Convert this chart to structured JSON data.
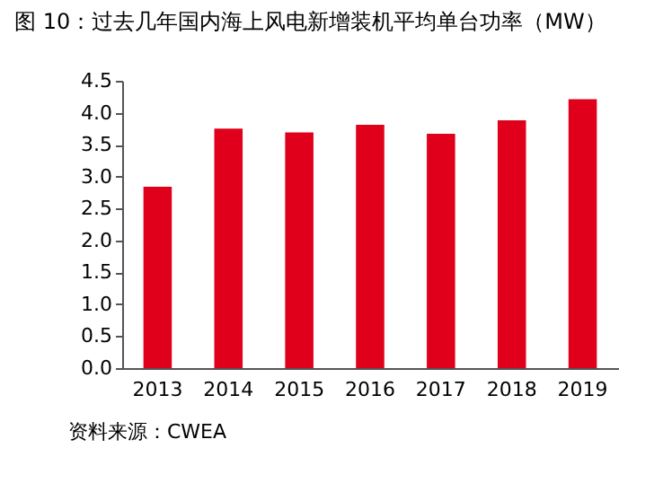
{
  "chart_data": {
    "type": "bar",
    "title": "图 10：过去几年国内海上风电新增装机平均单台功率（MW）",
    "categories": [
      "2013",
      "2014",
      "2015",
      "2016",
      "2017",
      "2018",
      "2019"
    ],
    "values": [
      2.84,
      3.75,
      3.69,
      3.81,
      3.67,
      3.88,
      4.21
    ],
    "color": "#e0001b",
    "ylim": [
      0,
      4.5
    ],
    "yticks": [
      {
        "value": 0,
        "label": "0.0"
      },
      0.5,
      {
        "value": 1,
        "label": "1.0"
      },
      1.5,
      {
        "value": 2,
        "label": "2.0"
      },
      2.5,
      {
        "value": 3,
        "label": "3.0"
      },
      3.5,
      {
        "value": 4,
        "label": "4.0"
      },
      4.5
    ],
    "grid": false,
    "annotations": [
      "资料来源：CWEA"
    ]
  }
}
